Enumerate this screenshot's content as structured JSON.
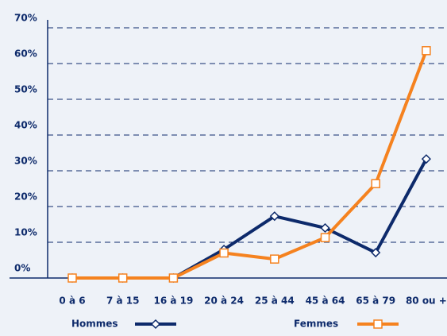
{
  "chart_data": {
    "type": "line",
    "categories": [
      "0 à 6",
      "7 à 15",
      "16 à 19",
      "20 à 24",
      "25 à 44",
      "45 à 64",
      "65 à 79",
      "80 ou +"
    ],
    "series": [
      {
        "name": "Hommes",
        "color": "#0d2a6b",
        "values": [
          0,
          0,
          0,
          8,
          17.3,
          14,
          7.1,
          33.3
        ]
      },
      {
        "name": "Femmes",
        "color": "#f5821f",
        "values": [
          0,
          0,
          0,
          7,
          5.3,
          11.3,
          26.4,
          63.6
        ]
      }
    ],
    "ylim": [
      0,
      70
    ],
    "yticks": [
      {
        "value": 0,
        "label": "0%"
      },
      {
        "value": 10,
        "label": "10%"
      },
      {
        "value": 20,
        "label": "20%"
      },
      {
        "value": 30,
        "label": "30%"
      },
      {
        "value": 40,
        "label": "40%"
      },
      {
        "value": 50,
        "label": "50%"
      },
      {
        "value": 60,
        "label": "60%"
      },
      {
        "value": 70,
        "label": "70%"
      }
    ],
    "grid": true
  }
}
